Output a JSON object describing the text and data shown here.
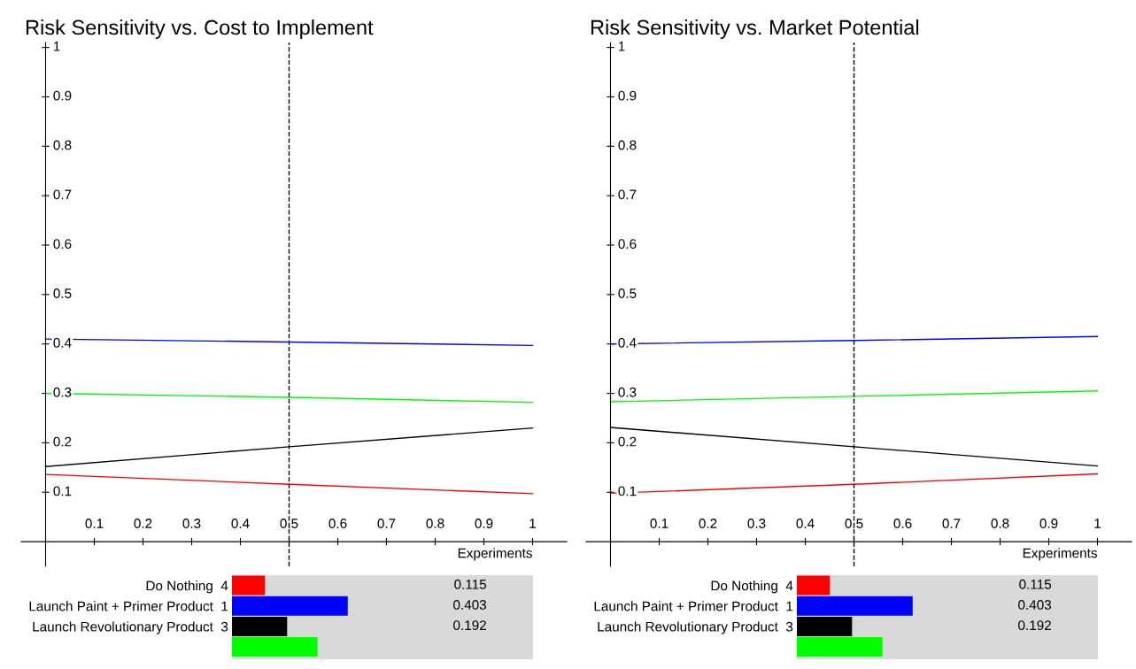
{
  "chart_data": [
    {
      "type": "line",
      "title": "Risk Sensitivity vs. Cost to Implement",
      "xlabel": "Experiments",
      "x": [
        0,
        0.5,
        1
      ],
      "series": [
        {
          "color": "#0000ff",
          "values": [
            0.41,
            0.404,
            0.397
          ]
        },
        {
          "color": "#00ff00",
          "values": [
            0.3,
            0.292,
            0.282
          ]
        },
        {
          "color": "#000000",
          "values": [
            0.152,
            0.192,
            0.23
          ]
        },
        {
          "color": "#ff0000",
          "values": [
            0.136,
            0.116,
            0.097
          ]
        }
      ],
      "xlim": [
        -0.05,
        1.07
      ],
      "ylim": [
        -0.05,
        1.01
      ],
      "xticks": [
        0.1,
        0.2,
        0.3,
        0.4,
        0.5,
        0.6,
        0.7,
        0.8,
        0.9,
        1
      ],
      "yticks": [
        0.1,
        0.2,
        0.3,
        0.4,
        0.5,
        0.6,
        0.7,
        0.8,
        0.9,
        1
      ],
      "ref_lines": [
        {
          "axis": "x",
          "value": 0.5,
          "color": "#000000",
          "line_style": "dashed"
        }
      ],
      "grid": false,
      "legend": false,
      "marker": "none",
      "line_style": "solid"
    },
    {
      "type": "bar",
      "orientation": "horizontal",
      "categories": [
        "Do Nothing  4",
        "Launch Paint + Primer Product  1",
        "Launch Revolutionary Product  3",
        null
      ],
      "values": [
        0.115,
        0.403,
        0.192,
        0.298
      ],
      "colors": [
        "#ff0000",
        "#0000ff",
        "#000000",
        "#00ff00"
      ],
      "value_labels": [
        "0.115",
        "0.403",
        "0.192",
        null
      ]
    },
    {
      "type": "line",
      "title": "Risk Sensitivity vs. Market Potential",
      "xlabel": "Experiments",
      "x": [
        0,
        0.5,
        1
      ],
      "series": [
        {
          "color": "#0000ff",
          "values": [
            0.4,
            0.407,
            0.415
          ]
        },
        {
          "color": "#00ff00",
          "values": [
            0.283,
            0.294,
            0.305
          ]
        },
        {
          "color": "#000000",
          "values": [
            0.231,
            0.192,
            0.153
          ]
        },
        {
          "color": "#ff0000",
          "values": [
            0.098,
            0.116,
            0.137
          ]
        }
      ],
      "xlim": [
        -0.05,
        1.07
      ],
      "ylim": [
        -0.05,
        1.01
      ],
      "xticks": [
        0.1,
        0.2,
        0.3,
        0.4,
        0.5,
        0.6,
        0.7,
        0.8,
        0.9,
        1
      ],
      "yticks": [
        0.1,
        0.2,
        0.3,
        0.4,
        0.5,
        0.6,
        0.7,
        0.8,
        0.9,
        1
      ],
      "ref_lines": [
        {
          "axis": "x",
          "value": 0.5,
          "color": "#000000",
          "line_style": "dashed"
        }
      ],
      "grid": false,
      "legend": false,
      "marker": "none",
      "line_style": "solid"
    },
    {
      "type": "bar",
      "orientation": "horizontal",
      "categories": [
        "Do Nothing  4",
        "Launch Paint + Primer Product  1",
        "Launch Revolutionary Product  3",
        null
      ],
      "values": [
        0.115,
        0.403,
        0.192,
        0.298
      ],
      "colors": [
        "#ff0000",
        "#0000ff",
        "#000000",
        "#00ff00"
      ],
      "value_labels": [
        "0.115",
        "0.403",
        "0.192",
        null
      ]
    }
  ]
}
